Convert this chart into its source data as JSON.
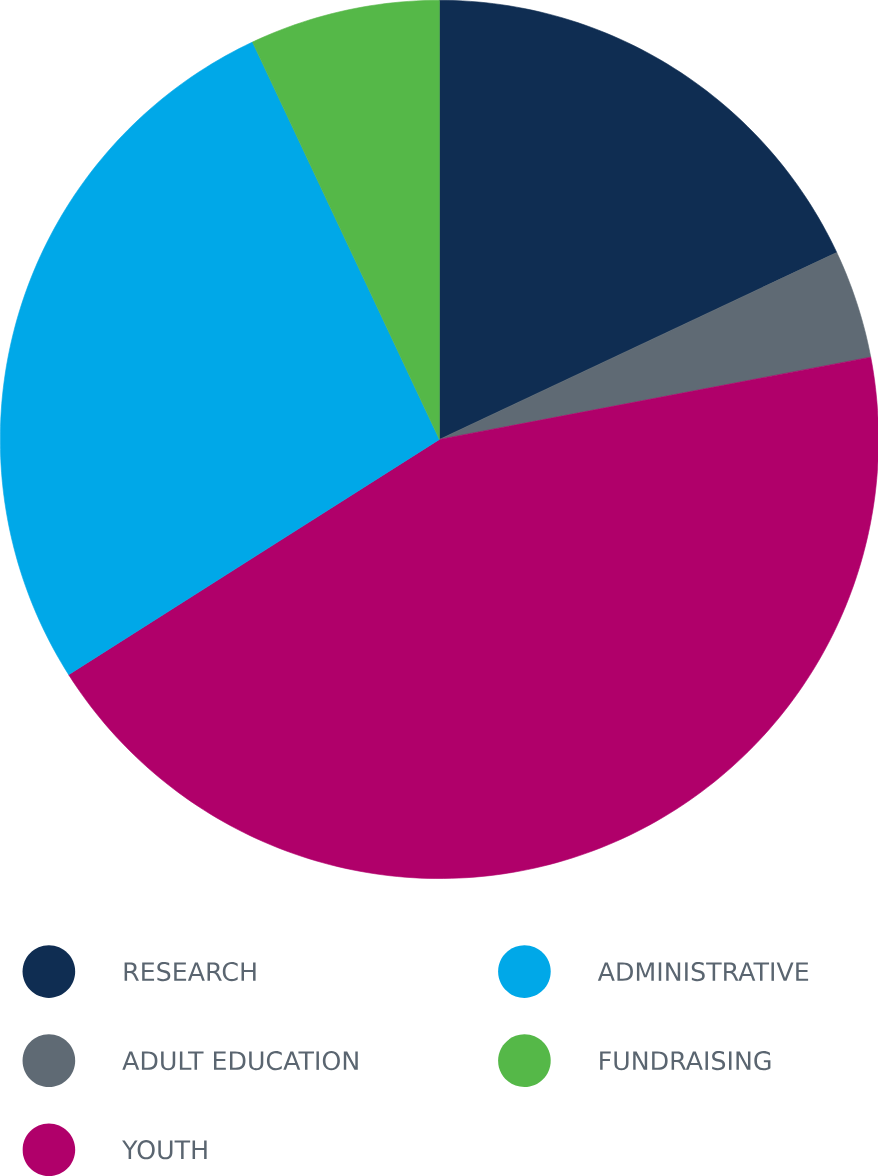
{
  "chart_data": {
    "type": "pie",
    "categories": [
      "RESEARCH",
      "ADULT EDUCATION",
      "YOUTH",
      "ADMINISTRATIVE",
      "FUNDRAISING"
    ],
    "values": [
      18,
      4,
      44,
      27,
      7
    ],
    "colors": [
      "#0f2d52",
      "#5f6a74",
      "#b0006a",
      "#00a8e8",
      "#55b848"
    ],
    "legend": "bottom"
  }
}
